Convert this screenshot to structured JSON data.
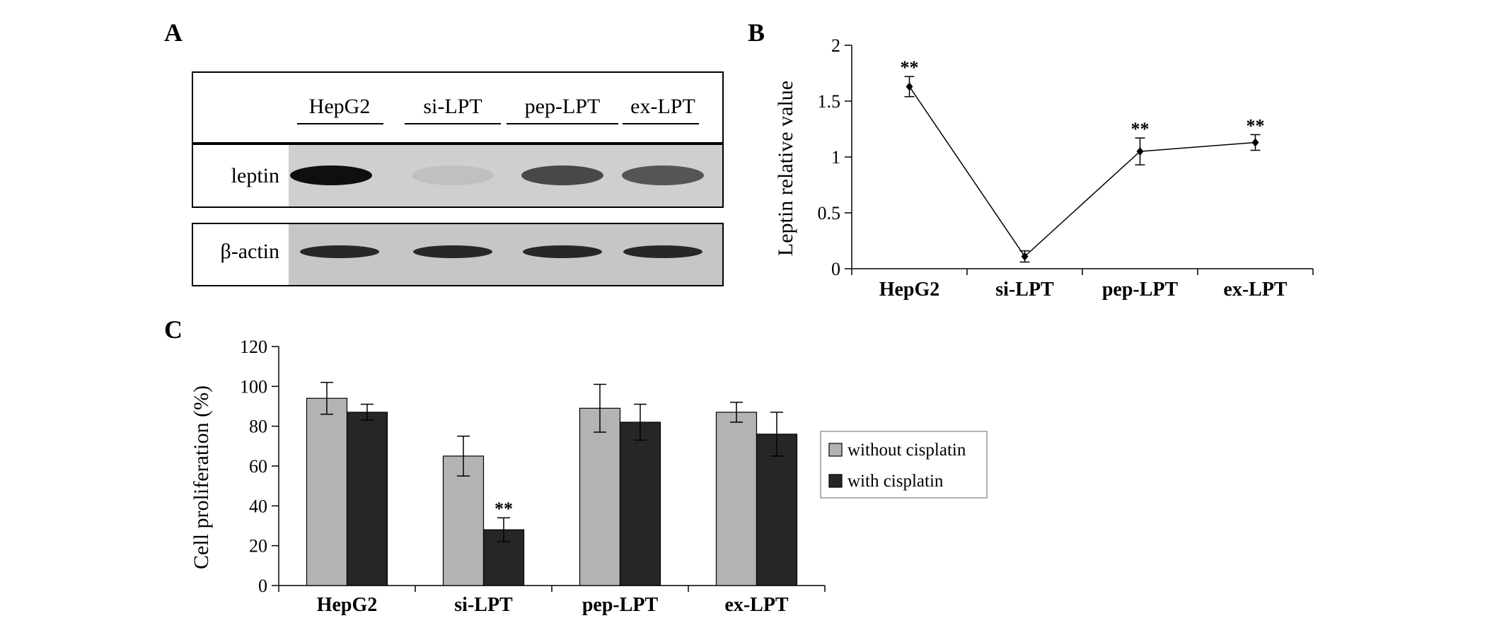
{
  "panels": {
    "a": "A",
    "b": "B",
    "c": "C"
  },
  "blot": {
    "lanes": [
      "HepG2",
      "si-LPT",
      "pep-LPT",
      "ex-LPT"
    ],
    "row1_label": "leptin",
    "row2_label": "β-actin",
    "leptin_intensity": [
      1.0,
      0.15,
      0.8,
      0.75
    ],
    "actin_intensity": [
      0.85,
      0.85,
      0.85,
      0.85
    ]
  },
  "chart_data": [
    {
      "type": "line",
      "panel": "B",
      "categories": [
        "HepG2",
        "si-LPT",
        "pep-LPT",
        "ex-LPT"
      ],
      "values": [
        1.63,
        0.11,
        1.05,
        1.13
      ],
      "errors": [
        0.09,
        0.05,
        0.12,
        0.07
      ],
      "annotations": [
        "**",
        "",
        "**",
        "**"
      ],
      "ylabel": "Leptin relative value",
      "ylim": [
        0,
        2
      ],
      "yticks": [
        "0",
        "0.5",
        "1",
        "1.5",
        "2"
      ]
    },
    {
      "type": "bar",
      "panel": "C",
      "categories": [
        "HepG2",
        "si-LPT",
        "pep-LPT",
        "ex-LPT"
      ],
      "series": [
        {
          "name": "without cisplatin",
          "color": "#b3b3b3",
          "values": [
            94,
            65,
            89,
            87
          ],
          "errors": [
            8,
            10,
            12,
            5
          ],
          "annotations": [
            "",
            "",
            "",
            ""
          ]
        },
        {
          "name": "with cisplatin",
          "color": "#262626",
          "values": [
            87,
            28,
            82,
            76
          ],
          "errors": [
            4,
            6,
            9,
            11
          ],
          "annotations": [
            "",
            "**",
            "",
            ""
          ]
        }
      ],
      "ylabel": "Cell proliferation (%)",
      "ylim": [
        0,
        120
      ],
      "yticks": [
        "0",
        "20",
        "40",
        "60",
        "80",
        "100",
        "120"
      ],
      "legend_position": "right"
    }
  ]
}
